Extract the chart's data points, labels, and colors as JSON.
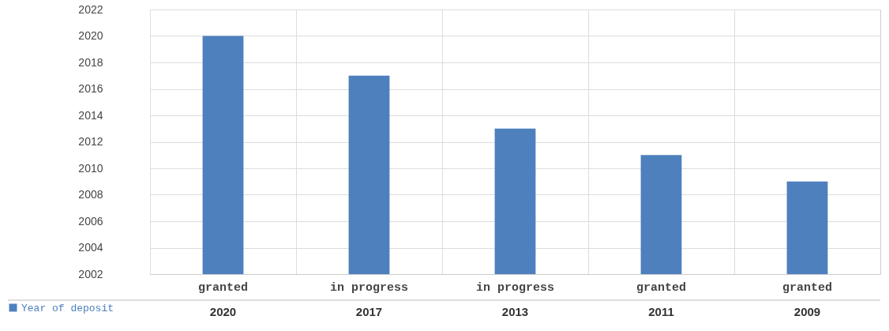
{
  "chart_data": {
    "type": "bar",
    "categories": [
      "granted",
      "in progress",
      "in progress",
      "granted",
      "granted"
    ],
    "series": [
      {
        "name": "Year of deposit",
        "color": "#4e80bd",
        "values": [
          2020,
          2017,
          2013,
          2011,
          2009
        ]
      }
    ],
    "ylim": [
      2002,
      2022
    ],
    "yticks": [
      2002,
      2004,
      2006,
      2008,
      2010,
      2012,
      2014,
      2016,
      2018,
      2020,
      2022
    ],
    "grid": true,
    "legend": "bottom left",
    "data_labels": true
  }
}
